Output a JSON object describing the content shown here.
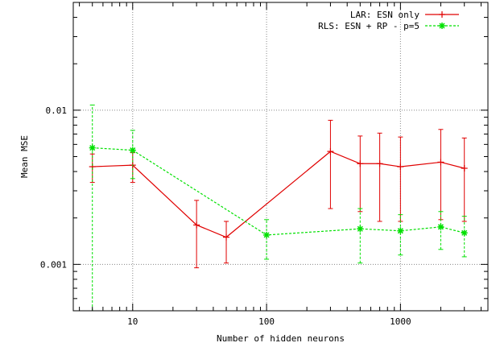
{
  "chart_data": {
    "type": "line",
    "title": "",
    "xlabel": "Number of hidden neurons",
    "ylabel": "Mean MSE",
    "x_scale": "log",
    "y_scale": "log",
    "xlim": [
      3.6,
      4500
    ],
    "ylim": [
      0.0005,
      0.05
    ],
    "x_ticks": [
      10,
      100,
      1000
    ],
    "x_tick_labels": [
      "10",
      "100",
      "1000"
    ],
    "y_ticks": [
      0.001,
      0.01
    ],
    "y_tick_labels": [
      "0.001",
      "0.01"
    ],
    "grid": true,
    "legend_position": "top-right",
    "series": [
      {
        "name": "LAR: ESN only",
        "color": "#e00000",
        "line_style": "solid",
        "marker": "plus",
        "x": [
          5,
          10,
          30,
          50,
          300,
          500,
          700,
          1000,
          2000,
          3000
        ],
        "y": [
          0.0043,
          0.0044,
          0.0018,
          0.0015,
          0.0054,
          0.0045,
          0.0045,
          0.0043,
          0.0046,
          0.0042
        ],
        "y_low": [
          0.0034,
          0.0034,
          0.00095,
          0.00102,
          0.0023,
          0.0022,
          0.0019,
          0.0019,
          0.00195,
          0.0019
        ],
        "y_high": [
          0.0052,
          0.0053,
          0.0026,
          0.0019,
          0.0086,
          0.0068,
          0.0071,
          0.0067,
          0.0075,
          0.0066
        ]
      },
      {
        "name": "RLS: ESN + RP - p=5",
        "color": "#00e000",
        "line_style": "dashed",
        "marker": "star",
        "x": [
          5,
          10,
          100,
          500,
          1000,
          2000,
          3000
        ],
        "y": [
          0.0057,
          0.0055,
          0.00155,
          0.0017,
          0.00165,
          0.00175,
          0.0016
        ],
        "y_low": [
          0.0005,
          0.0036,
          0.00108,
          0.00102,
          0.00115,
          0.00125,
          0.00112
        ],
        "y_high": [
          0.0108,
          0.0074,
          0.00195,
          0.0023,
          0.0021,
          0.0022,
          0.00205
        ]
      }
    ]
  }
}
